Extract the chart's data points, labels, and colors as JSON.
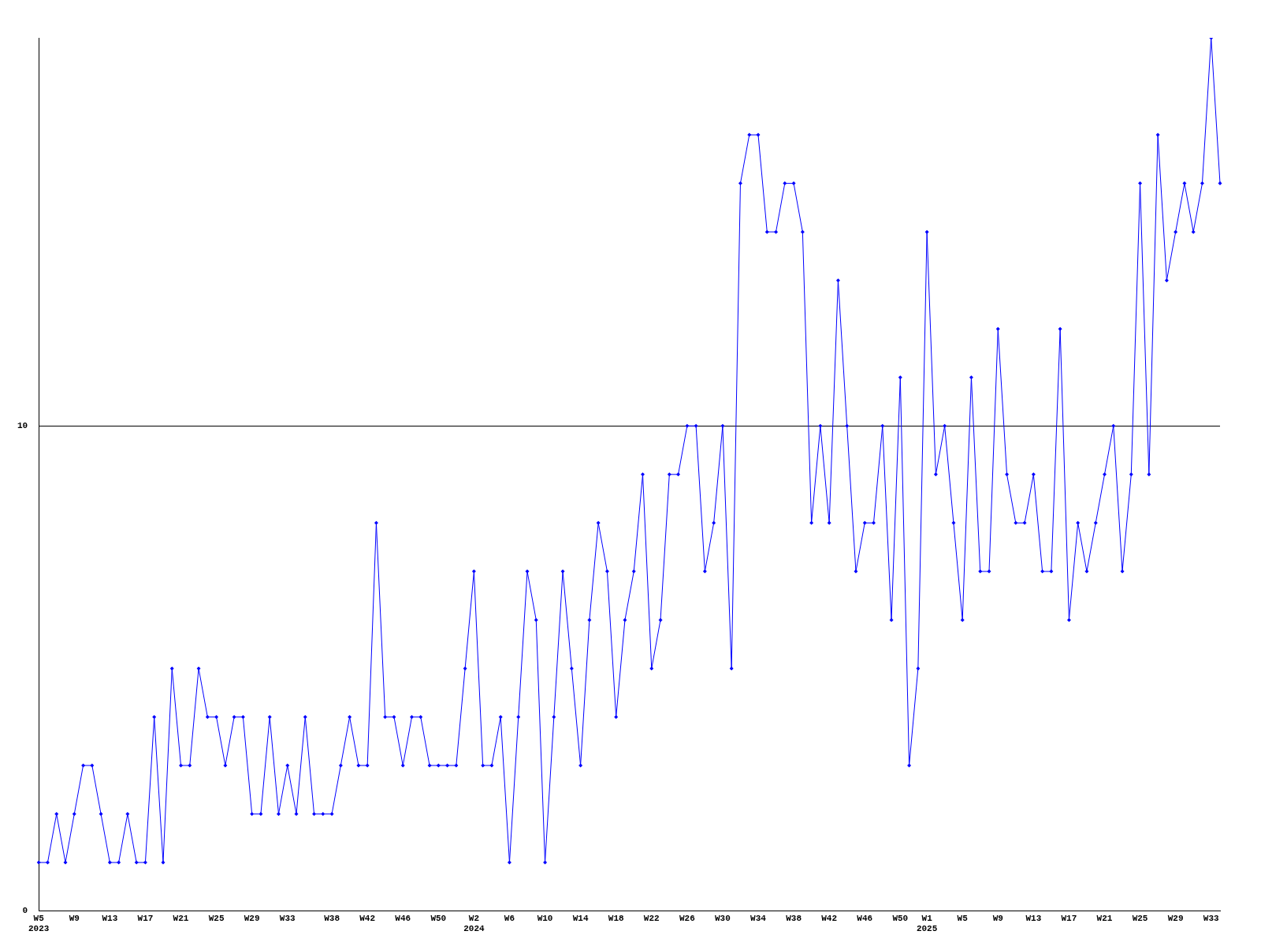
{
  "chart_data": {
    "type": "line",
    "categories": [
      "W5\n2023",
      null,
      null,
      null,
      "W9",
      null,
      null,
      null,
      "W13",
      null,
      null,
      null,
      "W17",
      null,
      null,
      null,
      "W21",
      null,
      null,
      null,
      "W25",
      null,
      null,
      null,
      "W29",
      null,
      null,
      null,
      "W33",
      null,
      null,
      null,
      null,
      "W38",
      null,
      null,
      null,
      "W42",
      null,
      null,
      null,
      "W46",
      null,
      null,
      null,
      "W50",
      null,
      null,
      null,
      "W2\n2024",
      null,
      null,
      null,
      "W6",
      null,
      null,
      null,
      "W10",
      null,
      null,
      null,
      "W14",
      null,
      null,
      null,
      "W18",
      null,
      null,
      null,
      "W22",
      null,
      null,
      null,
      "W26",
      null,
      null,
      null,
      "W30",
      null,
      null,
      null,
      "W34",
      null,
      null,
      null,
      "W38",
      null,
      null,
      null,
      "W42",
      null,
      null,
      null,
      "W46",
      null,
      null,
      null,
      "W50",
      null,
      null,
      "W1\n2025",
      null,
      null,
      null,
      "W5",
      null,
      null,
      null,
      "W9",
      null,
      null,
      null,
      "W13",
      null,
      null,
      null,
      "W17",
      null,
      null,
      null,
      "W21",
      null,
      null,
      null,
      "W25",
      null,
      null,
      null,
      "W29",
      null,
      null,
      null,
      "W33",
      null
    ],
    "series": [
      {
        "color": "#0000ff",
        "values": [
          1,
          1,
          2,
          1,
          2,
          3,
          3,
          2,
          1,
          1,
          2,
          1,
          1,
          4,
          1,
          5,
          3,
          3,
          5,
          4,
          4,
          3,
          4,
          4,
          2,
          2,
          4,
          2,
          3,
          2,
          4,
          2,
          2,
          2,
          3,
          4,
          3,
          3,
          8,
          4,
          4,
          3,
          4,
          4,
          3,
          3,
          3,
          3,
          5,
          7,
          3,
          3,
          4,
          1,
          4,
          7,
          6,
          1,
          4,
          7,
          5,
          3,
          6,
          8,
          7,
          4,
          6,
          7,
          9,
          5,
          6,
          9,
          9,
          10,
          10,
          7,
          8,
          10,
          5,
          15,
          16,
          16,
          14,
          14,
          15,
          15,
          14,
          8,
          10,
          8,
          13,
          10,
          7,
          8,
          8,
          10,
          6,
          11,
          3,
          5,
          14,
          9,
          10,
          8,
          6,
          11,
          7,
          7,
          12,
          9,
          8,
          8,
          9,
          7,
          7,
          12,
          6,
          8,
          7,
          8,
          9,
          10,
          7,
          9,
          15,
          9,
          16,
          13,
          14,
          15,
          14,
          15,
          18,
          15
        ]
      }
    ],
    "ylim": [
      0,
      18
    ],
    "yticks": [
      0,
      10
    ],
    "grid": "y",
    "marker": "diamond",
    "legend": false
  }
}
